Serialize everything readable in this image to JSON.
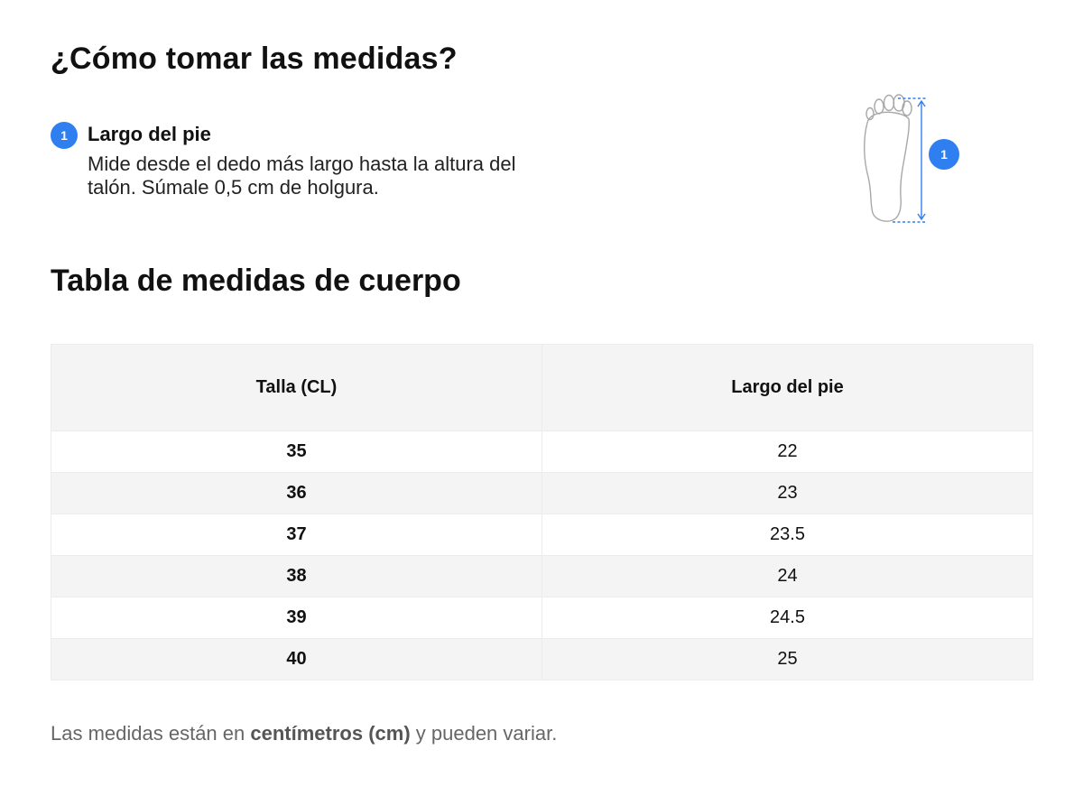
{
  "howto": {
    "title": "¿Cómo tomar las medidas?",
    "measure": {
      "number": "1",
      "title": "Largo del pie",
      "description": "Mide desde el dedo más largo hasta la altura del talón. Súmale 0,5 cm de holgura."
    },
    "figure": {
      "badge_number": "1",
      "icon": "foot-outline-icon",
      "accent_color": "#2f7ff0"
    }
  },
  "table": {
    "title": "Tabla de medidas de cuerpo",
    "headers": [
      "Talla (CL)",
      "Largo del pie"
    ],
    "rows": [
      {
        "size": "35",
        "length": "22"
      },
      {
        "size": "36",
        "length": "23"
      },
      {
        "size": "37",
        "length": "23.5"
      },
      {
        "size": "38",
        "length": "24"
      },
      {
        "size": "39",
        "length": "24.5"
      },
      {
        "size": "40",
        "length": "25"
      }
    ]
  },
  "footnote": {
    "before": "Las medidas están en ",
    "bold": "centímetros (cm)",
    "after": " y pueden variar."
  }
}
